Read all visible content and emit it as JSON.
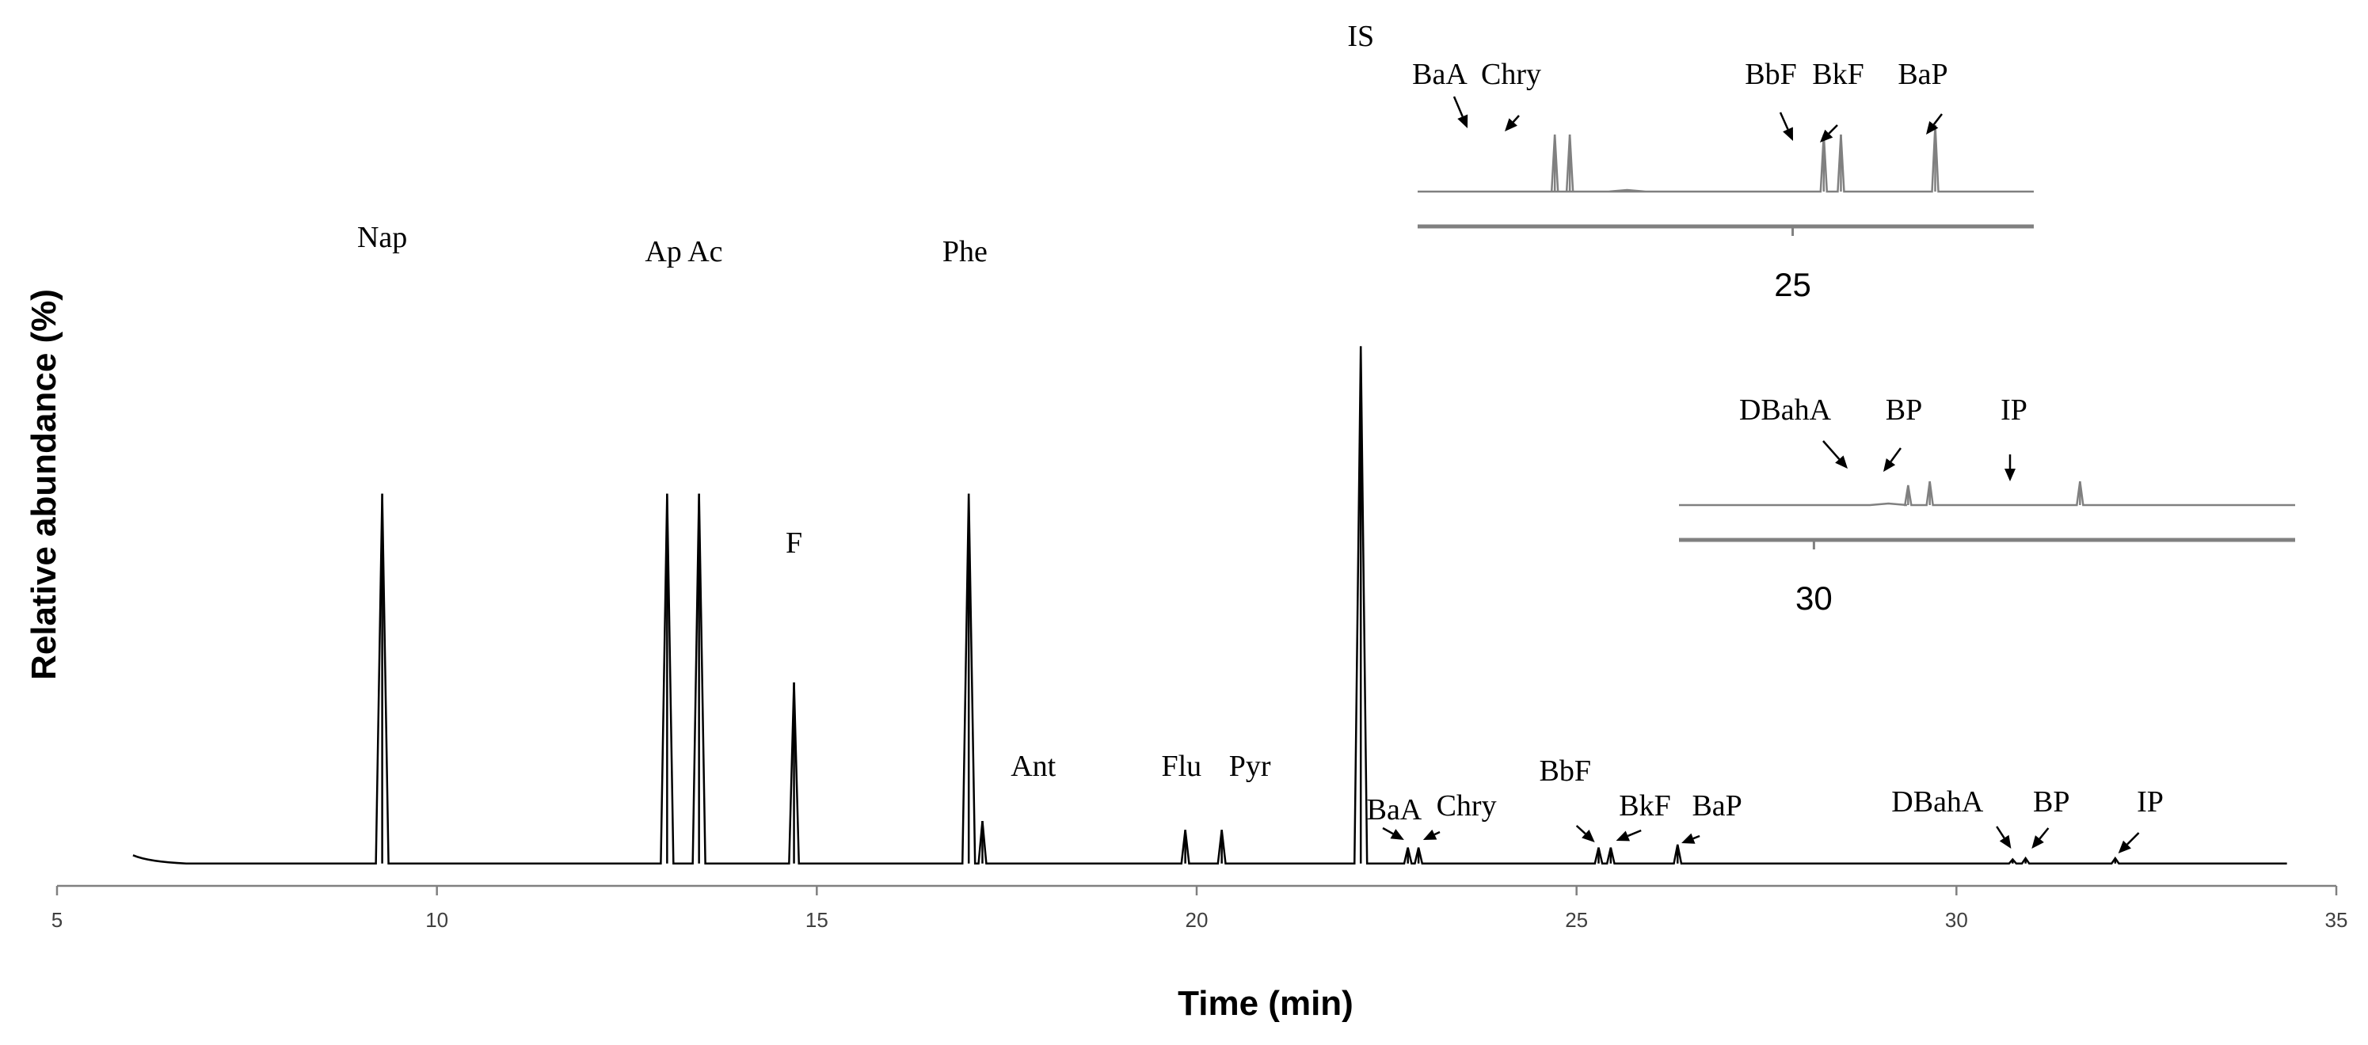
{
  "chart_data": {
    "type": "line",
    "title": "",
    "xlabel": "Time (min)",
    "ylabel": "Relative abundance (%)",
    "xlim": [
      5,
      35
    ],
    "ylim": [
      0,
      100
    ],
    "xticks": [
      5,
      10,
      15,
      20,
      25,
      30,
      35
    ],
    "grid": false,
    "legend": "none",
    "baseline": 0.3,
    "start_time": 6.0,
    "end_time": 34.35,
    "peaks": [
      {
        "label": "Nap",
        "rt": 9.28,
        "height": 63.0
      },
      {
        "label": "Ap",
        "rt": 13.03,
        "height": 63.0
      },
      {
        "label": "Ac",
        "rt": 13.45,
        "height": 63.0
      },
      {
        "label": "F",
        "rt": 14.7,
        "height": 31.0
      },
      {
        "label": "Phe",
        "rt": 17.0,
        "height": 63.0
      },
      {
        "label": "Ant",
        "rt": 17.18,
        "height": 7.5
      },
      {
        "label": "Flu",
        "rt": 19.85,
        "height": 6.0
      },
      {
        "label": "Pyr",
        "rt": 20.33,
        "height": 6.0
      },
      {
        "label": "IS",
        "rt": 22.16,
        "height": 88.0
      },
      {
        "label": "BaA",
        "rt": 22.78,
        "height": 3.0
      },
      {
        "label": "Chry",
        "rt": 22.92,
        "height": 3.0
      },
      {
        "label": "BbF",
        "rt": 25.29,
        "height": 3.0
      },
      {
        "label": "BkF",
        "rt": 25.45,
        "height": 3.0
      },
      {
        "label": "BaP",
        "rt": 26.33,
        "height": 3.5
      },
      {
        "label": "DBahA",
        "rt": 30.74,
        "height": 1.0
      },
      {
        "label": "BP",
        "rt": 30.91,
        "height": 1.2
      },
      {
        "label": "IP",
        "rt": 32.09,
        "height": 1.2
      }
    ],
    "main_labels": [
      "Nap",
      "Ap Ac",
      "F",
      "Phe",
      "Ant",
      "Flu",
      "Pyr",
      "IS",
      "BaA",
      "Chry",
      "BbF",
      "BkF",
      "BaP",
      "DBahA",
      "BP",
      "IP"
    ],
    "insets": [
      {
        "tick_label": "25",
        "peaks": [
          "BaA",
          "Chry",
          "BbF",
          "BkF",
          "BaP"
        ],
        "labels": [
          "BaA",
          "Chry",
          "BbF",
          "BkF",
          "BaP"
        ]
      },
      {
        "tick_label": "30",
        "peaks": [
          "DBahA",
          "BP",
          "IP"
        ],
        "labels": [
          "DBahA",
          "BP",
          "IP"
        ]
      }
    ]
  }
}
